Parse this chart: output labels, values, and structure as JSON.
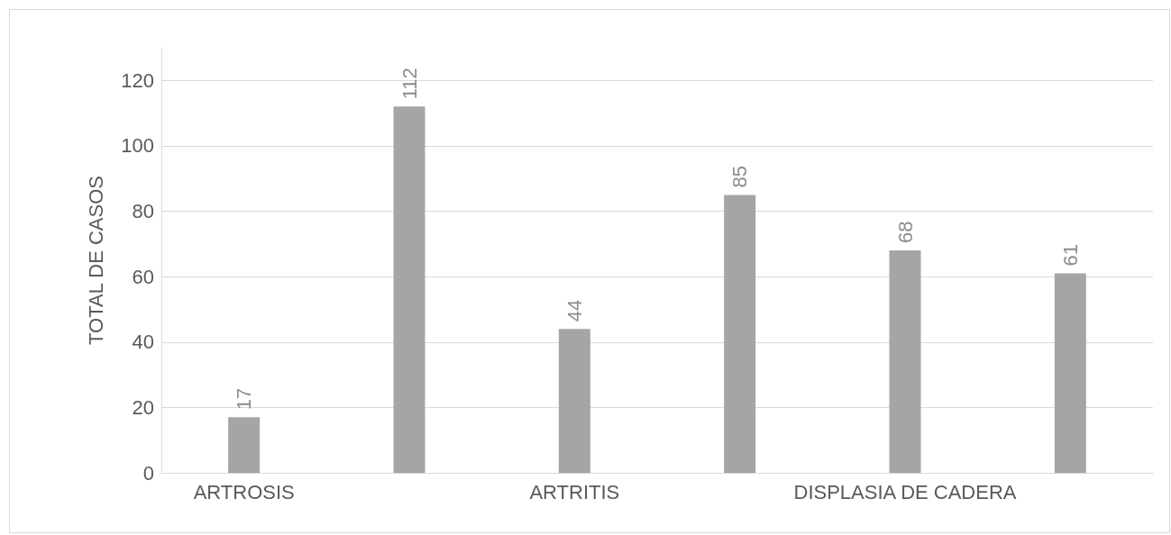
{
  "chart_data": {
    "type": "bar",
    "ylabel": "TOTAL DE CASOS",
    "categories": [
      "ARTROSIS",
      null,
      "ARTRITIS",
      null,
      "DISPLASIA DE CADERA",
      null
    ],
    "values": [
      17,
      112,
      44,
      85,
      68,
      61
    ],
    "color": "#a5a5a5",
    "ylim": [
      0,
      130
    ],
    "yticks": [
      0,
      20,
      40,
      60,
      80,
      100,
      120
    ],
    "grid": "y",
    "data_labels": true
  }
}
